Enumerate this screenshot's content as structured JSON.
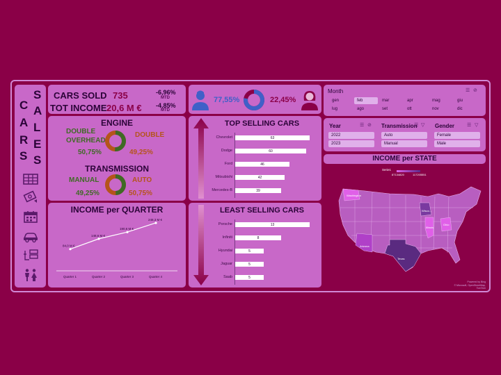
{
  "sidebar": {
    "word_left": [
      "C",
      "A",
      "R",
      "S"
    ],
    "word_right": [
      "S",
      "A",
      "L",
      "E",
      "S"
    ],
    "icons": [
      "table-icon",
      "money-icon",
      "calendar-icon",
      "car-icon",
      "list-icon",
      "people-icon"
    ]
  },
  "kpi": {
    "cars_sold_label": "CARS SOLD",
    "cars_sold_value": "735",
    "cars_sold_pct": "-6,96%",
    "cars_sold_mtd": "MTD",
    "income_label": "TOT INCOME",
    "income_value": "20,6 M €",
    "income_pct": "-4,85%",
    "income_mtd": "MTD"
  },
  "gender": {
    "male_pct": "77,55%",
    "female_pct": "22,45%",
    "male_share": 0.7755
  },
  "month": {
    "title": "Month",
    "items": [
      "gen",
      "feb",
      "mar",
      "apr",
      "mag",
      "giu",
      "lug",
      "ago",
      "set",
      "ott",
      "nov",
      "dic"
    ],
    "selected": "feb"
  },
  "engine": {
    "title": "ENGINE",
    "left_label": "DOUBLE OVERHEAD",
    "left_label_line1": "DOUBLE",
    "left_label_line2": "OVERHEAD",
    "left_pct": "50,75%",
    "right_label": "DOUBLE",
    "right_pct": "49,25%",
    "share": 0.5075
  },
  "transmission": {
    "title": "TRANSMISSION",
    "left_label": "MANUAL",
    "left_pct": "49,25%",
    "right_label": "AUTO",
    "right_pct": "50,75%",
    "share": 0.4925
  },
  "top_selling": {
    "title": "TOP SELLING CARS",
    "items": [
      {
        "name": "Chevrolet",
        "value": 63
      },
      {
        "name": "Dodge",
        "value": 60
      },
      {
        "name": "Ford",
        "value": 46
      },
      {
        "name": "Mitsubishi",
        "value": 42
      },
      {
        "name": "Mercedes-B",
        "value": 39
      }
    ]
  },
  "least_selling": {
    "title": "LEAST SELLING CARS",
    "items": [
      {
        "name": "Porsche",
        "value": 13
      },
      {
        "name": "Infiniti",
        "value": 8
      },
      {
        "name": "Hyundai",
        "value": 5
      },
      {
        "name": "Jaguar",
        "value": 5
      },
      {
        "name": "Saab",
        "value": 5
      }
    ]
  },
  "slicers": {
    "year_title": "Year",
    "year_items": [
      "2022",
      "2023"
    ],
    "transmission_title": "Transmission",
    "transmission_items": [
      "Auto",
      "Manual"
    ],
    "gender_title": "Gender",
    "gender_items": [
      "Female",
      "Male"
    ]
  },
  "income_state": {
    "title": "INCOME per STATE",
    "legend_series": "Serie1",
    "legend_min": "87134820",
    "legend_max": "117205551",
    "labels": [
      "Washington",
      "Wisco...",
      "Illinois",
      "Ohio",
      "Arizona",
      "Texas"
    ],
    "credit_line1": "Powered by Bing",
    "credit_line2": "© Microsoft, OpenStreetMap, TomTom"
  },
  "chart_data": {
    "type": "line",
    "title": "INCOME per QUARTER",
    "categories": [
      "Quarter 1",
      "Quarter 2",
      "Quarter 3",
      "Quarter 4"
    ],
    "values": [
      84.0,
      148.6,
      190.6,
      248.3
    ],
    "value_labels": [
      "84,0 M €",
      "148,6 M €",
      "190,6 M €",
      "248,3 M €"
    ],
    "ylim": [
      0,
      270
    ],
    "grid": false
  },
  "colors": {
    "background": "#8a0047",
    "card": "#c868c8",
    "text_dark": "#2b0338",
    "green": "#3f6a25",
    "orange": "#b5541b",
    "male_blue": "#4060c8",
    "female_maroon": "#8a0047"
  }
}
